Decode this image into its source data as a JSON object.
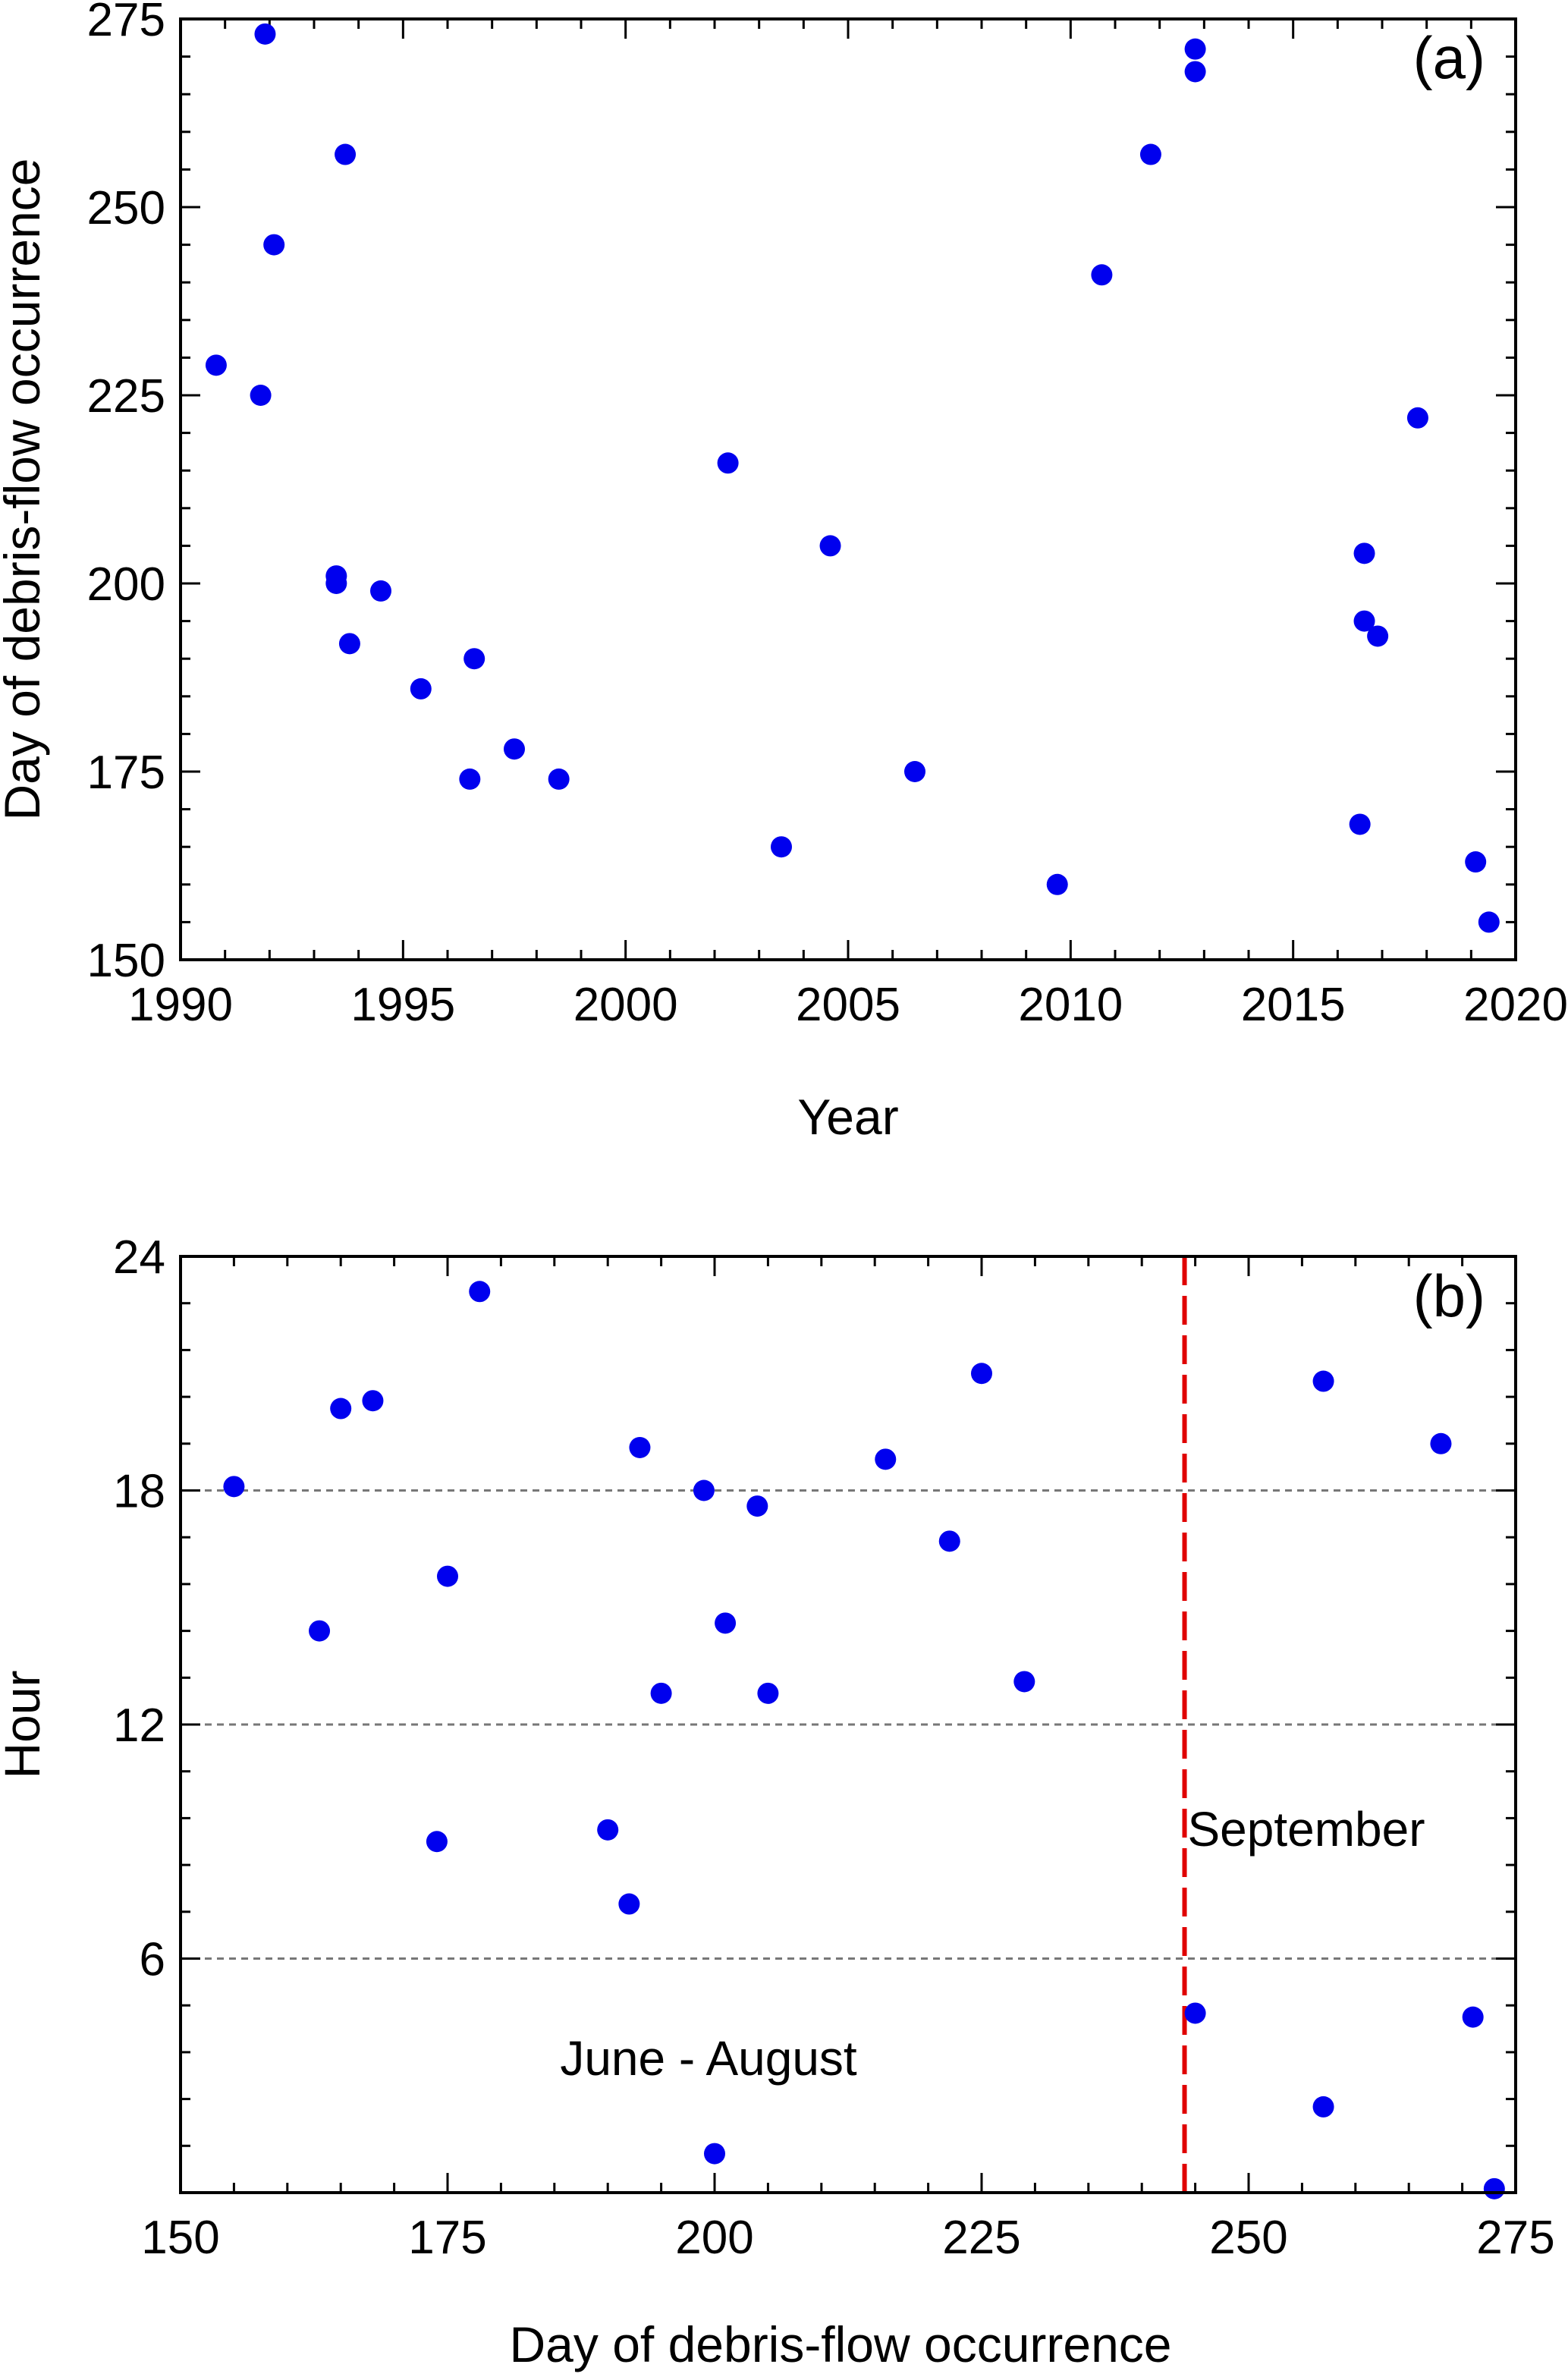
{
  "chart_data": [
    {
      "type": "scatter",
      "panel_label": "(a)",
      "xlabel": "Year",
      "ylabel": "Day of debris-flow occurrence",
      "xlim": [
        1990,
        2020
      ],
      "ylim": [
        150,
        275
      ],
      "xticks": [
        1990,
        1995,
        2000,
        2005,
        2010,
        2015,
        2020
      ],
      "yticks": [
        150,
        175,
        200,
        225,
        250,
        275
      ],
      "marker_color": "#0000ee",
      "grid": false,
      "series": [
        {
          "points": [
            [
              1990.8,
              229
            ],
            [
              1991.8,
              225
            ],
            [
              1991.9,
              273
            ],
            [
              1992.1,
              245
            ],
            [
              1993.5,
              201
            ],
            [
              1993.5,
              200
            ],
            [
              1993.7,
              257
            ],
            [
              1993.8,
              192
            ],
            [
              1994.5,
              199
            ],
            [
              1995.4,
              186
            ],
            [
              1996.5,
              174
            ],
            [
              1996.6,
              190
            ],
            [
              1997.5,
              178
            ],
            [
              1998.5,
              174
            ],
            [
              2002.3,
              216
            ],
            [
              2003.5,
              165
            ],
            [
              2004.6,
              205
            ],
            [
              2006.5,
              175
            ],
            [
              2009.7,
              160
            ],
            [
              2010.7,
              241
            ],
            [
              2011.8,
              257
            ],
            [
              2012.8,
              271
            ],
            [
              2012.8,
              268
            ],
            [
              2016.5,
              168
            ],
            [
              2016.6,
              204
            ],
            [
              2016.6,
              195
            ],
            [
              2016.9,
              193
            ],
            [
              2017.8,
              222
            ],
            [
              2019.1,
              163
            ],
            [
              2019.4,
              155
            ]
          ]
        }
      ]
    },
    {
      "type": "scatter",
      "panel_label": "(b)",
      "xlabel": "Day of debris-flow occurrence",
      "ylabel": "Hour",
      "xlim": [
        150,
        275
      ],
      "ylim": [
        0,
        24
      ],
      "xticks": [
        150,
        175,
        200,
        225,
        250,
        275
      ],
      "yticks": [
        6,
        12,
        18,
        24
      ],
      "marker_color": "#0000ee",
      "gridlines_y": [
        6,
        12,
        18
      ],
      "gridline_color": "#777777",
      "divider_x": 244,
      "divider_color": "#e00000",
      "annotations": [
        "June - August",
        "September"
      ],
      "series": [
        {
          "points": [
            [
              155,
              18.1
            ],
            [
              163,
              14.4
            ],
            [
              165,
              20.1
            ],
            [
              168,
              20.3
            ],
            [
              174,
              9.0
            ],
            [
              175,
              15.8
            ],
            [
              178,
              23.1
            ],
            [
              190,
              9.3
            ],
            [
              192,
              7.4
            ],
            [
              193,
              19.1
            ],
            [
              195,
              12.8
            ],
            [
              199,
              18.0
            ],
            [
              200,
              1.0
            ],
            [
              201,
              14.6
            ],
            [
              204,
              17.6
            ],
            [
              205,
              12.8
            ],
            [
              216,
              18.8
            ],
            [
              222,
              16.7
            ],
            [
              225,
              21.0
            ],
            [
              229,
              13.1
            ],
            [
              245,
              4.6
            ],
            [
              257,
              20.8
            ],
            [
              257,
              2.2
            ],
            [
              268,
              19.2
            ],
            [
              271,
              4.5
            ],
            [
              273,
              0.1
            ]
          ]
        }
      ]
    }
  ]
}
